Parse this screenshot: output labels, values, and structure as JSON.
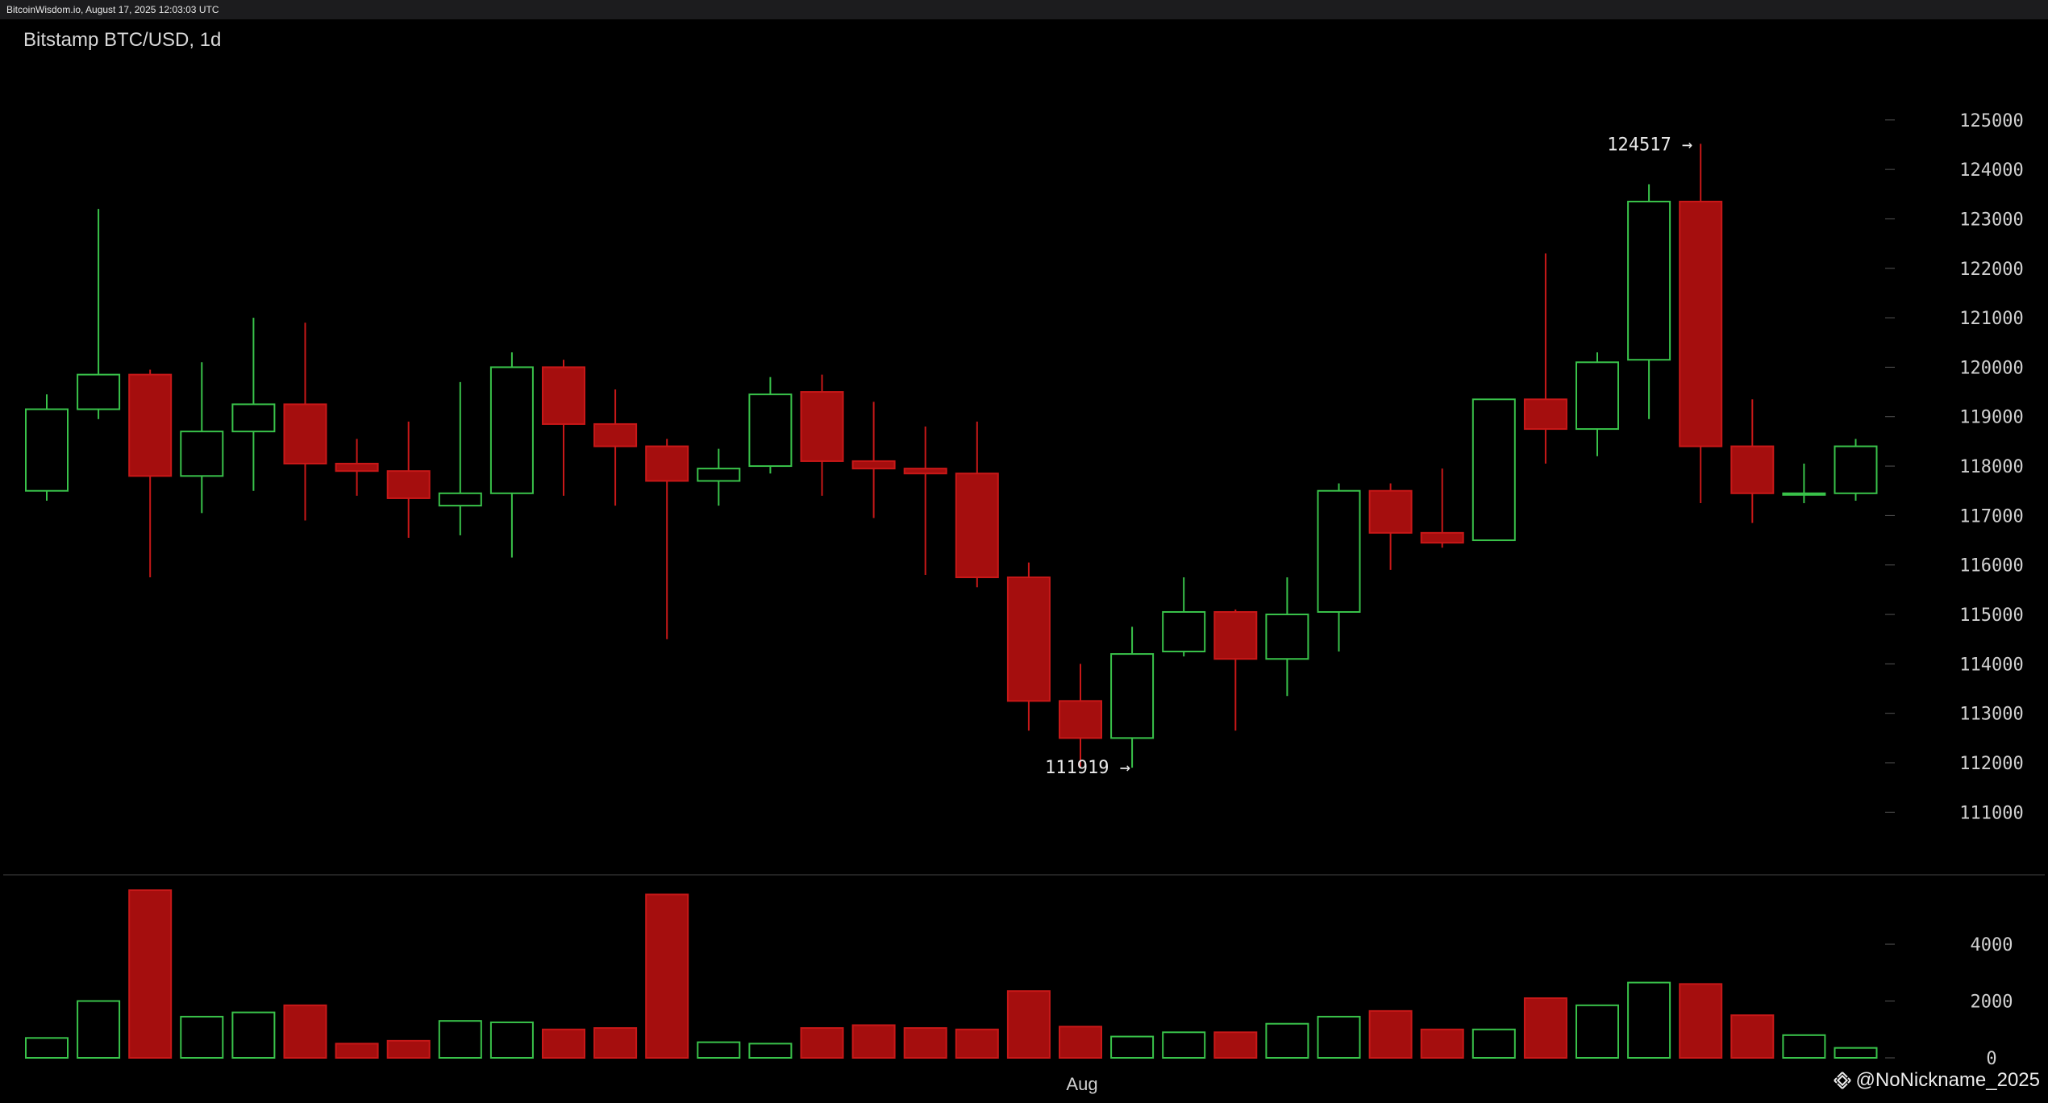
{
  "header": {
    "timestamp": "BitcoinWisdom.io, August 17, 2025 12:03:03 UTC"
  },
  "watermark": {
    "icon": "binance-diamond-icon",
    "text": "@NoNickname_2025"
  },
  "colors": {
    "up": "#39c24a",
    "down": "#a50e0e",
    "downBorder": "#c81818",
    "axisText": "#d0d0d0",
    "divider": "#444444"
  },
  "chart_data": {
    "type": "candlestick",
    "title": "Bitstamp BTC/USD, 1d",
    "ylim": [
      110500,
      125600
    ],
    "volume_ylim": [
      0,
      6300
    ],
    "yticks": [
      125000,
      124000,
      123000,
      122000,
      121000,
      120000,
      119000,
      118000,
      117000,
      116000,
      115000,
      114000,
      113000,
      112000,
      111000
    ],
    "ytick_labels": [
      "125000",
      "124000",
      "123000",
      "122000",
      "121000",
      "120000",
      "119000",
      "118000",
      "117000",
      "116000",
      "115000",
      "114000",
      "113000",
      "112000",
      "111000"
    ],
    "volume_yticks": [
      4000,
      2000,
      0
    ],
    "volume_ytick_labels": [
      "4000",
      "2000",
      "0"
    ],
    "x_label": "Aug",
    "x_label_index": 20,
    "annotations": [
      {
        "text": "124517 →",
        "index": 32,
        "value": 124517,
        "side": "above"
      },
      {
        "text": "111919 →",
        "index": 20,
        "value": 111919,
        "side": "below"
      }
    ],
    "candles": [
      {
        "o": 117500,
        "h": 119450,
        "l": 117300,
        "c": 119150,
        "v": 700
      },
      {
        "o": 119150,
        "h": 123200,
        "l": 118950,
        "c": 119850,
        "v": 2000
      },
      {
        "o": 119850,
        "h": 119950,
        "l": 115750,
        "c": 117800,
        "v": 5900
      },
      {
        "o": 117800,
        "h": 120100,
        "l": 117050,
        "c": 118700,
        "v": 1450
      },
      {
        "o": 118700,
        "h": 121000,
        "l": 117500,
        "c": 119250,
        "v": 1600
      },
      {
        "o": 119250,
        "h": 120900,
        "l": 116900,
        "c": 118050,
        "v": 1850
      },
      {
        "o": 118050,
        "h": 118550,
        "l": 117400,
        "c": 117900,
        "v": 500
      },
      {
        "o": 117900,
        "h": 118900,
        "l": 116550,
        "c": 117350,
        "v": 600
      },
      {
        "o": 117200,
        "h": 119700,
        "l": 116600,
        "c": 117450,
        "v": 1300
      },
      {
        "o": 117450,
        "h": 120300,
        "l": 116150,
        "c": 120000,
        "v": 1250
      },
      {
        "o": 120000,
        "h": 120150,
        "l": 117400,
        "c": 118850,
        "v": 1000
      },
      {
        "o": 118850,
        "h": 119550,
        "l": 117200,
        "c": 118400,
        "v": 1050
      },
      {
        "o": 118400,
        "h": 118550,
        "l": 114500,
        "c": 117700,
        "v": 5750
      },
      {
        "o": 117700,
        "h": 118350,
        "l": 117200,
        "c": 117950,
        "v": 550
      },
      {
        "o": 118000,
        "h": 119800,
        "l": 117850,
        "c": 119450,
        "v": 500
      },
      {
        "o": 119500,
        "h": 119850,
        "l": 117400,
        "c": 118100,
        "v": 1050
      },
      {
        "o": 118100,
        "h": 119300,
        "l": 116950,
        "c": 117950,
        "v": 1150
      },
      {
        "o": 117950,
        "h": 118800,
        "l": 115800,
        "c": 117850,
        "v": 1050
      },
      {
        "o": 117850,
        "h": 118900,
        "l": 115550,
        "c": 115750,
        "v": 1000
      },
      {
        "o": 115750,
        "h": 116050,
        "l": 112650,
        "c": 113250,
        "v": 2350
      },
      {
        "o": 113250,
        "h": 114000,
        "l": 111919,
        "c": 112500,
        "v": 1100
      },
      {
        "o": 112500,
        "h": 114750,
        "l": 111900,
        "c": 114200,
        "v": 750
      },
      {
        "o": 114250,
        "h": 115750,
        "l": 114150,
        "c": 115050,
        "v": 900
      },
      {
        "o": 115050,
        "h": 115100,
        "l": 112650,
        "c": 114100,
        "v": 900
      },
      {
        "o": 114100,
        "h": 115750,
        "l": 113350,
        "c": 115000,
        "v": 1200
      },
      {
        "o": 115050,
        "h": 117650,
        "l": 114250,
        "c": 117500,
        "v": 1450
      },
      {
        "o": 117500,
        "h": 117650,
        "l": 115900,
        "c": 116650,
        "v": 1650
      },
      {
        "o": 116650,
        "h": 117950,
        "l": 116350,
        "c": 116450,
        "v": 1000
      },
      {
        "o": 116500,
        "h": 119350,
        "l": 116500,
        "c": 119350,
        "v": 1000
      },
      {
        "o": 119350,
        "h": 122300,
        "l": 118050,
        "c": 118750,
        "v": 2100
      },
      {
        "o": 118750,
        "h": 120300,
        "l": 118200,
        "c": 120100,
        "v": 1850
      },
      {
        "o": 120150,
        "h": 123700,
        "l": 118950,
        "c": 123350,
        "v": 2650
      },
      {
        "o": 123350,
        "h": 124517,
        "l": 117250,
        "c": 118400,
        "v": 2600
      },
      {
        "o": 118400,
        "h": 119350,
        "l": 116850,
        "c": 117450,
        "v": 1500
      },
      {
        "o": 117450,
        "h": 118050,
        "l": 117250,
        "c": 117450,
        "v": 800
      },
      {
        "o": 117450,
        "h": 118550,
        "l": 117300,
        "c": 118400,
        "v": 350
      }
    ]
  }
}
